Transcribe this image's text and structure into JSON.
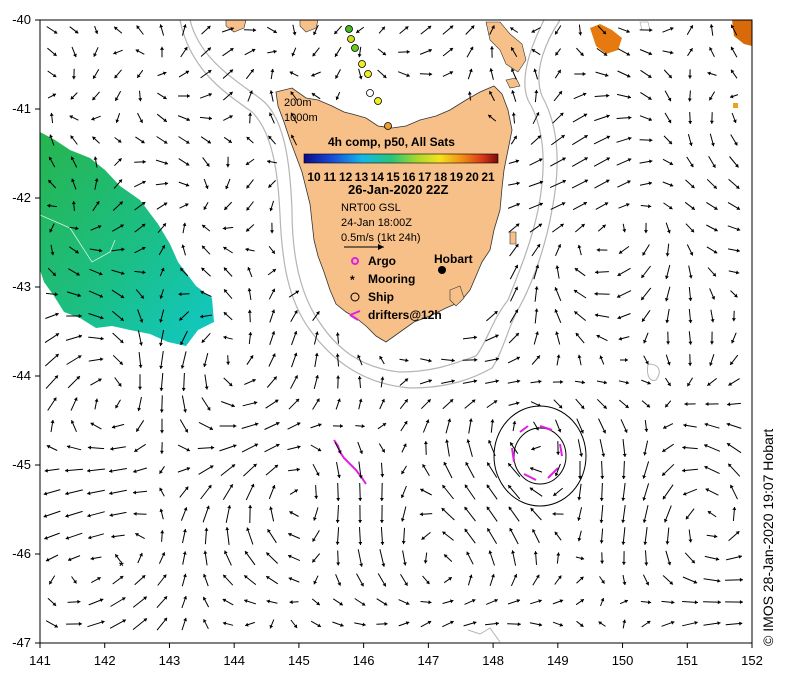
{
  "map": {
    "lon_range": [
      141,
      152
    ],
    "lat_range": [
      -47,
      -40
    ],
    "x_ticks": [
      "141",
      "142",
      "143",
      "144",
      "145",
      "146",
      "147",
      "148",
      "149",
      "150",
      "151",
      "152"
    ],
    "y_ticks": [
      "-40",
      "-41",
      "-42",
      "-43",
      "-44",
      "-45",
      "-46",
      "-47"
    ],
    "colors": {
      "land": "#f8c089",
      "sst_cool": "#00c8c0",
      "sst_green": "#22bb55",
      "sst_warm": "#e67a10",
      "isobath": "#b4b4b4",
      "drifter": "#e020e0",
      "arrow": "#000000"
    }
  },
  "overlay": {
    "isobath_200": "200m",
    "isobath_1000": "1000m",
    "product": "4h comp, p50, All Sats",
    "colorbar_ticks": [
      "10",
      "11",
      "12",
      "13",
      "14",
      "15",
      "16",
      "17",
      "18",
      "19",
      "20",
      "21"
    ],
    "datetime": "26-Jan-2020 22Z",
    "current_source": "NRT00 GSL",
    "current_time": "24-Jan 18:00Z",
    "scale_label": "0.5m/s (1kt 24h)",
    "city": "Hobart"
  },
  "legend": {
    "argo": "Argo",
    "mooring": "Mooring",
    "ship": "Ship",
    "drifters": "drifters@12h"
  },
  "credit": "© IMOS 28-Jan-2020 19:07 Hobart"
}
